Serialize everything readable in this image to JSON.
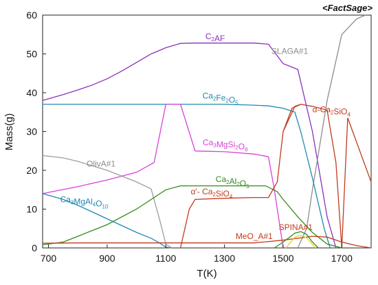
{
  "watermark": "<FactSage>",
  "chart_data": {
    "type": "line",
    "xlabel": "T(K)",
    "ylabel": "Mass(g)",
    "xlim": [
      680,
      1800
    ],
    "ylim": [
      0,
      60
    ],
    "xticks": [
      700,
      900,
      1100,
      1300,
      1500,
      1700
    ],
    "yticks": [
      0,
      10,
      20,
      30,
      40,
      50,
      60
    ],
    "grid": false,
    "legend": "none (inline labels)",
    "series": [
      {
        "name": "C2AF",
        "color": "#8b2fbf",
        "x": [
          680,
          750,
          800,
          850,
          900,
          950,
          1000,
          1050,
          1100,
          1150,
          1200,
          1300,
          1400,
          1450,
          1500,
          1550,
          1600,
          1650,
          1680
        ],
        "y": [
          38,
          39.5,
          40.7,
          42,
          43.6,
          45.6,
          47.8,
          50,
          51.6,
          52.7,
          52.8,
          52.8,
          52.8,
          52.5,
          47.5,
          46,
          30,
          8,
          0
        ]
      },
      {
        "name": "SLAGA#1",
        "color": "#8c8c8c",
        "x": [
          1550,
          1580,
          1600,
          1650,
          1700,
          1750,
          1780
        ],
        "y": [
          0,
          5,
          15,
          38,
          55,
          59,
          60
        ]
      },
      {
        "name": "Ca2Fe2O5",
        "color": "#1e88b0",
        "x": [
          680,
          800,
          1000,
          1200,
          1300,
          1400,
          1450,
          1500,
          1540,
          1560,
          1600,
          1640,
          1660
        ],
        "y": [
          37,
          37,
          37,
          37,
          37,
          36.8,
          36.6,
          36,
          35,
          30,
          18,
          5,
          0
        ]
      },
      {
        "name": "α-Ca2SiO4",
        "color": "#c03a1c",
        "x": [
          1500,
          1540,
          1560,
          1600,
          1650,
          1680,
          1700,
          1720,
          1800
        ],
        "y": [
          30,
          36.5,
          37,
          36.5,
          35.5,
          22,
          0,
          33.5,
          17
        ]
      },
      {
        "name": "Ca3MgSi2O8",
        "color": "#d93fd9",
        "x": [
          680,
          800,
          900,
          1000,
          1060,
          1100,
          1150,
          1200,
          1300,
          1400,
          1450,
          1470,
          1500
        ],
        "y": [
          14,
          15.8,
          17.5,
          19.5,
          22,
          37,
          37,
          25,
          24.8,
          24.2,
          23.5,
          15,
          0
        ]
      },
      {
        "name": "OlivA#1",
        "color": "#9c9c9c",
        "x": [
          680,
          750,
          800,
          900,
          1000,
          1050,
          1080,
          1100,
          1120
        ],
        "y": [
          23.8,
          23.2,
          22.3,
          20,
          17,
          15.2,
          7,
          1,
          0
        ]
      },
      {
        "name": "Ca2Al2O5",
        "color": "#2e8a1c",
        "x": [
          680,
          750,
          800,
          900,
          1000,
          1100,
          1150,
          1200,
          1300,
          1400,
          1440,
          1480,
          1500,
          1550,
          1600,
          1650,
          1700
        ],
        "y": [
          0.8,
          1.5,
          3,
          6,
          10,
          15,
          16,
          16,
          16,
          16,
          16,
          14.5,
          12.5,
          8,
          4,
          1,
          0
        ]
      },
      {
        "name": "Ca3MgAl4O10",
        "color": "#1e88b0",
        "x": [
          680,
          750,
          800,
          900,
          1000,
          1050,
          1080,
          1100,
          1120
        ],
        "y": [
          14,
          12.5,
          11,
          7.5,
          4,
          2.5,
          1.2,
          0.2,
          0
        ]
      },
      {
        "name": "α'-Ca2SiO4",
        "color": "#c03a1c",
        "x": [
          1150,
          1180,
          1200,
          1300,
          1400,
          1450,
          1480,
          1500,
          1530,
          1560
        ],
        "y": [
          0,
          10,
          12.5,
          12.8,
          13,
          13,
          17,
          30,
          36,
          37
        ]
      },
      {
        "name": "MeO_A#1",
        "color": "#c03a1c",
        "x": [
          680,
          800,
          1000,
          1200,
          1400,
          1500,
          1600,
          1650,
          1700,
          1750,
          1800
        ],
        "y": [
          1.2,
          1.3,
          1.3,
          1.3,
          1.3,
          2,
          3,
          2.8,
          1.5,
          0.6,
          0
        ]
      },
      {
        "name": "SPINA#1",
        "color": "#2e8a1c",
        "x": [
          1470,
          1500,
          1540,
          1560,
          1580,
          1600,
          1620
        ],
        "y": [
          0,
          1.5,
          3.8,
          4.2,
          3.5,
          1.5,
          0
        ]
      },
      {
        "name": "SPINA#1-yellow",
        "color": "#e0d020",
        "x": [
          1510,
          1540,
          1560,
          1580,
          1610
        ],
        "y": [
          0,
          2.8,
          3.2,
          2.6,
          0
        ]
      }
    ],
    "labels": [
      {
        "main": "C",
        "sub": "2",
        "tail": "AF",
        "x": 1235,
        "y": 53.8,
        "color": "#8b2fbf"
      },
      {
        "main": "SLAGA#1",
        "x": 1460,
        "y": 50,
        "color": "#8c8c8c"
      },
      {
        "main": "Ca",
        "sub": "2",
        "tail": "Fe",
        "sub2": "2",
        "tail2": "O",
        "sub3": "5",
        "x": 1225,
        "y": 38.5,
        "color": "#1e88b0"
      },
      {
        "main": "α-Ca",
        "sub": "2",
        "tail": "SiO",
        "sub2": "4",
        "x": 1600,
        "y": 35,
        "color": "#c03a1c"
      },
      {
        "main": "Ca",
        "sub": "3",
        "tail": "MgSi",
        "sub2": "2",
        "tail2": "O",
        "sub3": "8",
        "x": 1226,
        "y": 26.5,
        "color": "#d93fd9"
      },
      {
        "main": "OlivA#1",
        "x": 830,
        "y": 21,
        "color": "#8c8c8c"
      },
      {
        "main": "Ca",
        "sub": "2",
        "tail": "Al",
        "sub2": "2",
        "tail2": "O",
        "sub3": "5",
        "x": 1270,
        "y": 17,
        "color": "#2e8a1c"
      },
      {
        "main": "Ca",
        "sub": "3",
        "tail": "MgAl",
        "sub2": "4",
        "tail2": "O",
        "sub3": "10",
        "x": 740,
        "y": 11.8,
        "color": "#1e88b0"
      },
      {
        "main": "α'- Ca",
        "sub": "2",
        "tail": "SiO",
        "sub2": "4",
        "x": 1185,
        "y": 13.8,
        "color": "#c03a1c"
      },
      {
        "main": "MeO_A#1",
        "x": 1338,
        "y": 2.3,
        "color": "#c03a1c"
      },
      {
        "main": "SPINA#1",
        "x": 1485,
        "y": 4.6,
        "color": "#c03a1c"
      }
    ]
  }
}
